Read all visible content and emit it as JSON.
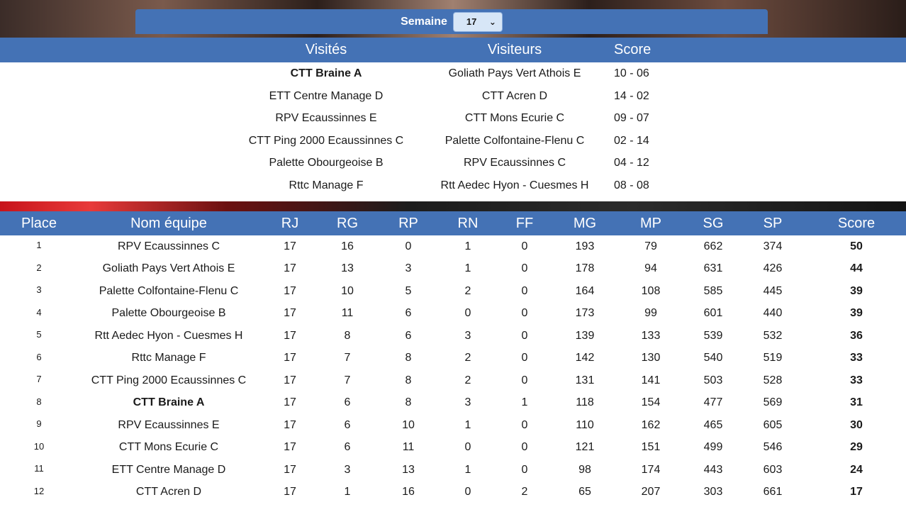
{
  "week": {
    "label": "Semaine",
    "selected": "17"
  },
  "matches": {
    "headers": {
      "home": "Visités",
      "away": "Visiteurs",
      "score": "Score"
    },
    "rows": [
      {
        "home": "CTT Braine A",
        "away": "Goliath Pays Vert Athois E",
        "score": "10 - 06",
        "highlight": "home"
      },
      {
        "home": "ETT Centre Manage D",
        "away": "CTT Acren D",
        "score": "14 - 02"
      },
      {
        "home": "RPV Ecaussinnes E",
        "away": "CTT Mons Ecurie C",
        "score": "09 - 07"
      },
      {
        "home": "CTT Ping 2000 Ecaussinnes C",
        "away": "Palette Colfontaine-Flenu C",
        "score": "02 - 14"
      },
      {
        "home": "Palette Obourgeoise B",
        "away": "RPV Ecaussinnes C",
        "score": "04 - 12"
      },
      {
        "home": "Rttc Manage F",
        "away": "Rtt Aedec Hyon - Cuesmes H",
        "score": "08 - 08"
      }
    ]
  },
  "standings": {
    "headers": [
      "Place",
      "Nom équipe",
      "RJ",
      "RG",
      "RP",
      "RN",
      "FF",
      "MG",
      "MP",
      "SG",
      "SP",
      "Score"
    ],
    "rows": [
      {
        "place": "1",
        "team": "RPV Ecaussinnes C",
        "rj": "17",
        "rg": "16",
        "rp": "0",
        "rn": "1",
        "ff": "0",
        "mg": "193",
        "mp": "79",
        "sg": "662",
        "sp": "374",
        "score": "50"
      },
      {
        "place": "2",
        "team": "Goliath Pays Vert Athois E",
        "rj": "17",
        "rg": "13",
        "rp": "3",
        "rn": "1",
        "ff": "0",
        "mg": "178",
        "mp": "94",
        "sg": "631",
        "sp": "426",
        "score": "44"
      },
      {
        "place": "3",
        "team": "Palette Colfontaine-Flenu C",
        "rj": "17",
        "rg": "10",
        "rp": "5",
        "rn": "2",
        "ff": "0",
        "mg": "164",
        "mp": "108",
        "sg": "585",
        "sp": "445",
        "score": "39"
      },
      {
        "place": "4",
        "team": "Palette Obourgeoise B",
        "rj": "17",
        "rg": "11",
        "rp": "6",
        "rn": "0",
        "ff": "0",
        "mg": "173",
        "mp": "99",
        "sg": "601",
        "sp": "440",
        "score": "39"
      },
      {
        "place": "5",
        "team": "Rtt Aedec Hyon - Cuesmes H",
        "rj": "17",
        "rg": "8",
        "rp": "6",
        "rn": "3",
        "ff": "0",
        "mg": "139",
        "mp": "133",
        "sg": "539",
        "sp": "532",
        "score": "36"
      },
      {
        "place": "6",
        "team": "Rttc Manage F",
        "rj": "17",
        "rg": "7",
        "rp": "8",
        "rn": "2",
        "ff": "0",
        "mg": "142",
        "mp": "130",
        "sg": "540",
        "sp": "519",
        "score": "33"
      },
      {
        "place": "7",
        "team": "CTT Ping 2000 Ecaussinnes C",
        "rj": "17",
        "rg": "7",
        "rp": "8",
        "rn": "2",
        "ff": "0",
        "mg": "131",
        "mp": "141",
        "sg": "503",
        "sp": "528",
        "score": "33"
      },
      {
        "place": "8",
        "team": "CTT Braine A",
        "rj": "17",
        "rg": "6",
        "rp": "8",
        "rn": "3",
        "ff": "1",
        "mg": "118",
        "mp": "154",
        "sg": "477",
        "sp": "569",
        "score": "31",
        "highlight": true
      },
      {
        "place": "9",
        "team": "RPV Ecaussinnes E",
        "rj": "17",
        "rg": "6",
        "rp": "10",
        "rn": "1",
        "ff": "0",
        "mg": "110",
        "mp": "162",
        "sg": "465",
        "sp": "605",
        "score": "30"
      },
      {
        "place": "10",
        "team": "CTT Mons Ecurie C",
        "rj": "17",
        "rg": "6",
        "rp": "11",
        "rn": "0",
        "ff": "0",
        "mg": "121",
        "mp": "151",
        "sg": "499",
        "sp": "546",
        "score": "29"
      },
      {
        "place": "11",
        "team": "ETT Centre Manage D",
        "rj": "17",
        "rg": "3",
        "rp": "13",
        "rn": "1",
        "ff": "0",
        "mg": "98",
        "mp": "174",
        "sg": "443",
        "sp": "603",
        "score": "24"
      },
      {
        "place": "12",
        "team": "CTT Acren D",
        "rj": "17",
        "rg": "1",
        "rp": "16",
        "rn": "0",
        "ff": "2",
        "mg": "65",
        "mp": "207",
        "sg": "303",
        "sp": "661",
        "score": "17"
      }
    ]
  },
  "colors": {
    "header_blue": "#4472b5",
    "select_bg": "#d7e6f7"
  }
}
